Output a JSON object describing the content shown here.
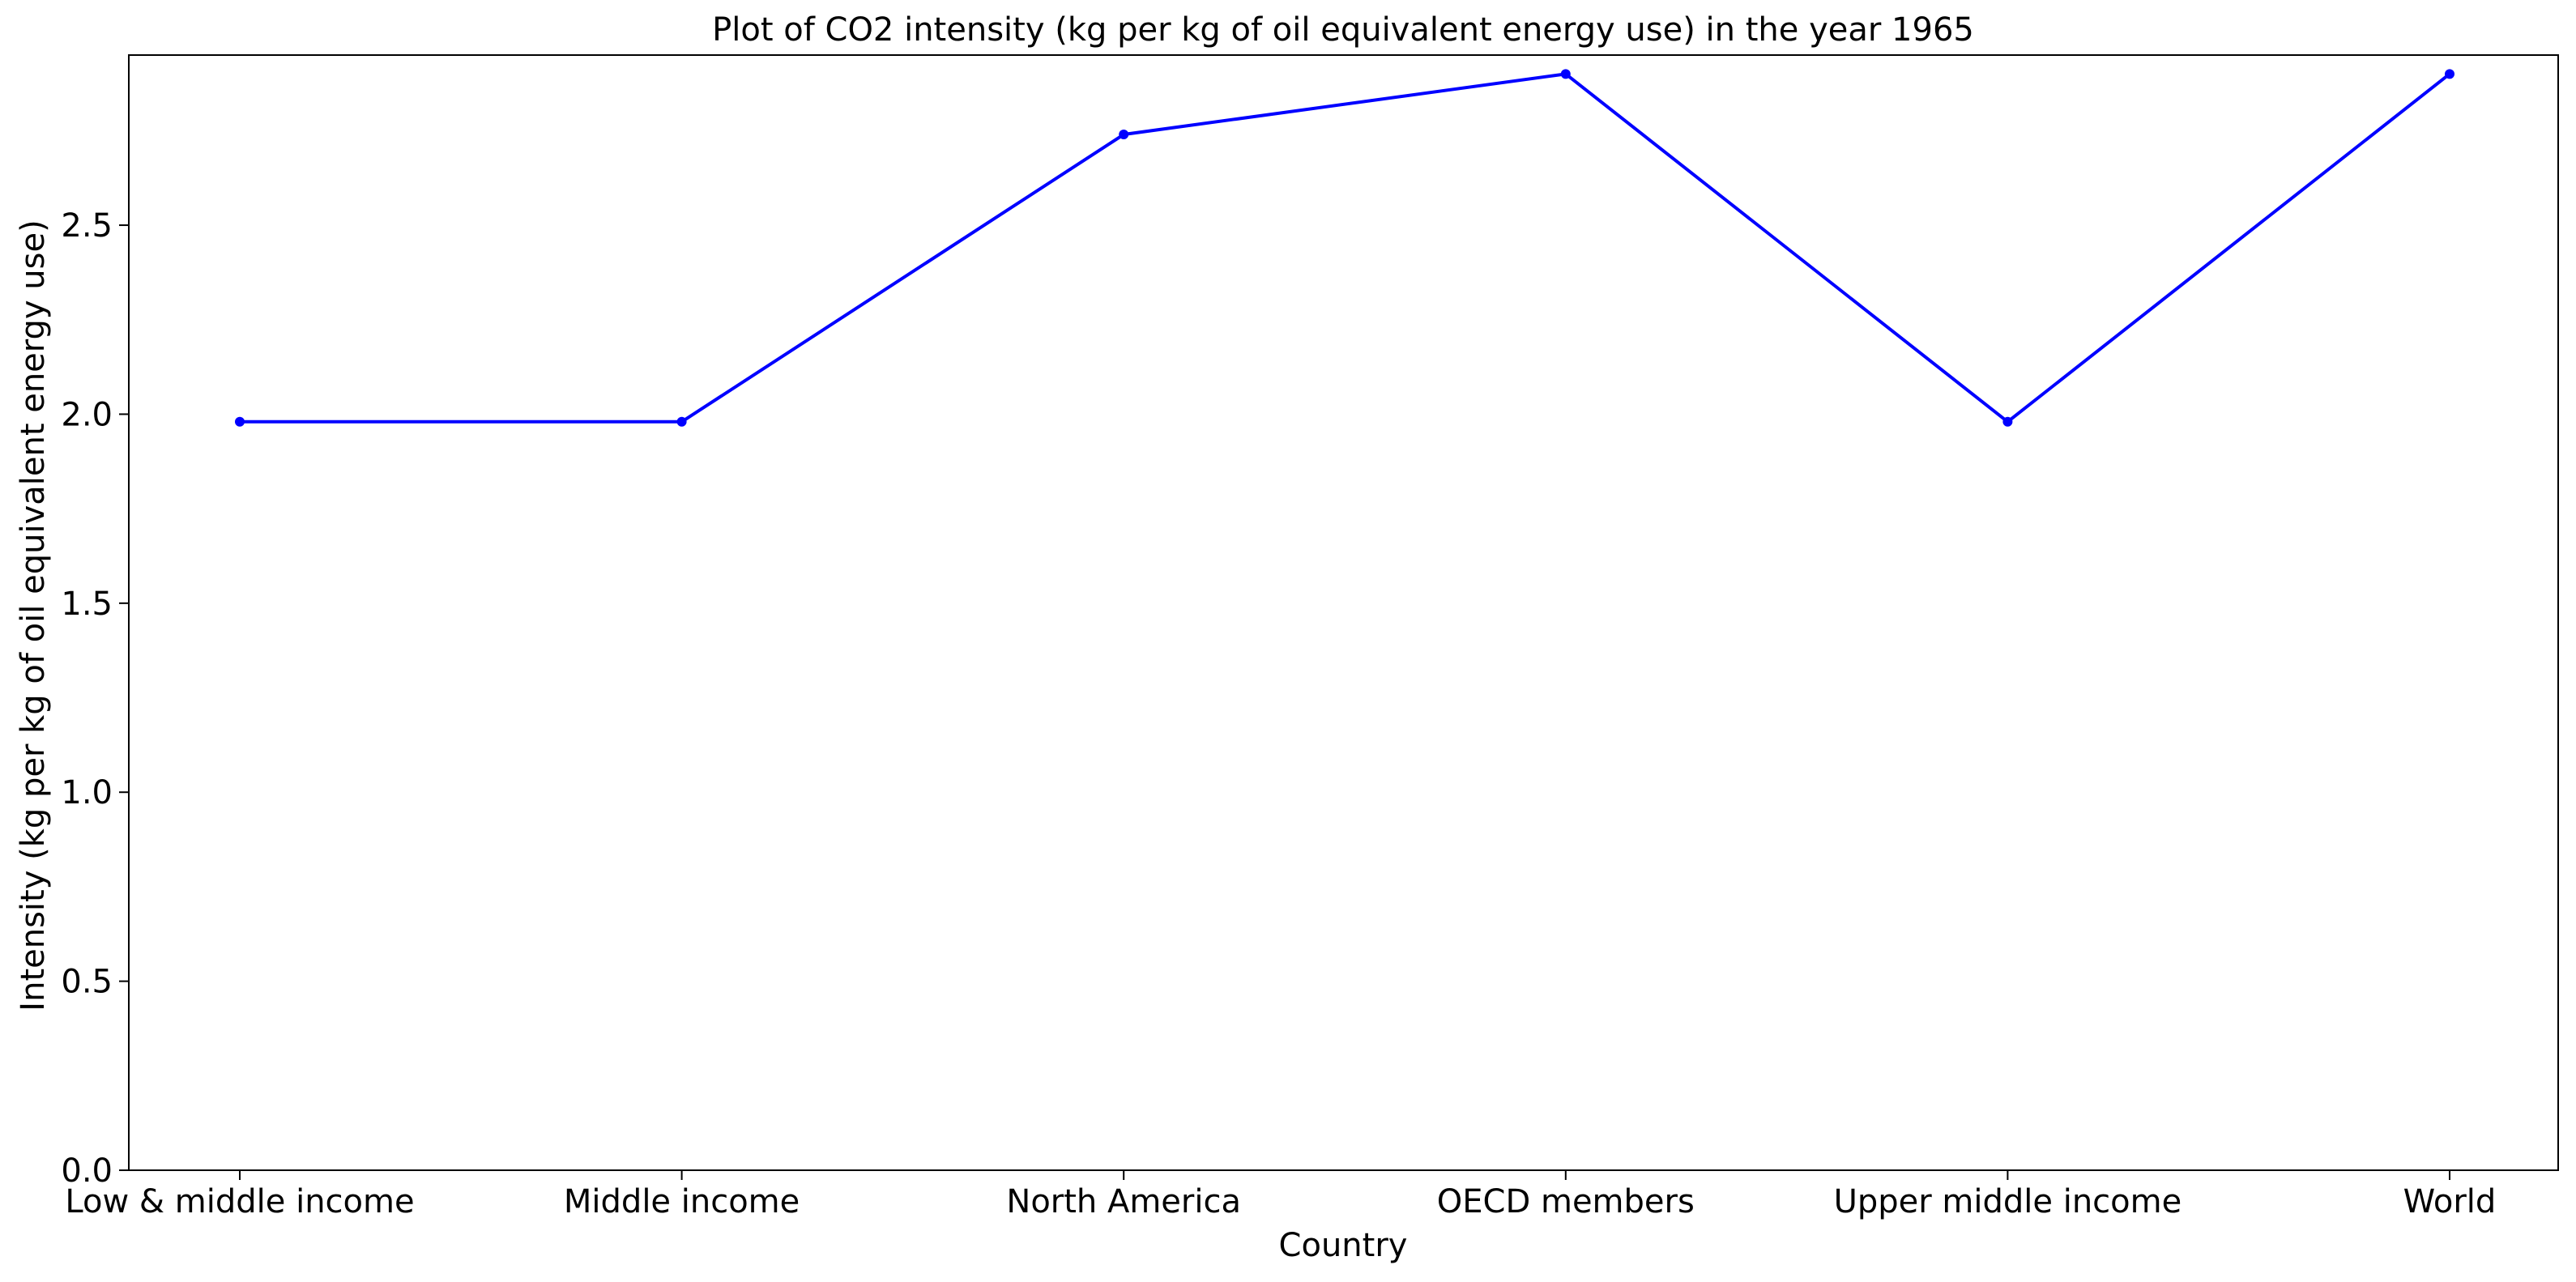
{
  "chart_data": {
    "type": "line",
    "title": "Plot of CO2 intensity (kg per kg of oil equivalent energy use) in the year 1965",
    "xlabel": "Country",
    "ylabel": "Intensity (kg per kg of oil equivalent energy use)",
    "categories": [
      "Low & middle income",
      "Middle income",
      "North America",
      "OECD members",
      "Upper middle income",
      "World"
    ],
    "series": [
      {
        "values": [
          1.98,
          1.98,
          2.74,
          2.9,
          1.98,
          2.9
        ],
        "color": "#0000ff"
      }
    ],
    "ylim": [
      0,
      2.95
    ],
    "yticks": [
      0.0,
      0.5,
      1.0,
      1.5,
      2.0,
      2.5
    ],
    "ytick_labels": [
      "0.0",
      "0.5",
      "1.0",
      "1.5",
      "2.0",
      "2.5"
    ],
    "grid": false,
    "legend": "none"
  }
}
